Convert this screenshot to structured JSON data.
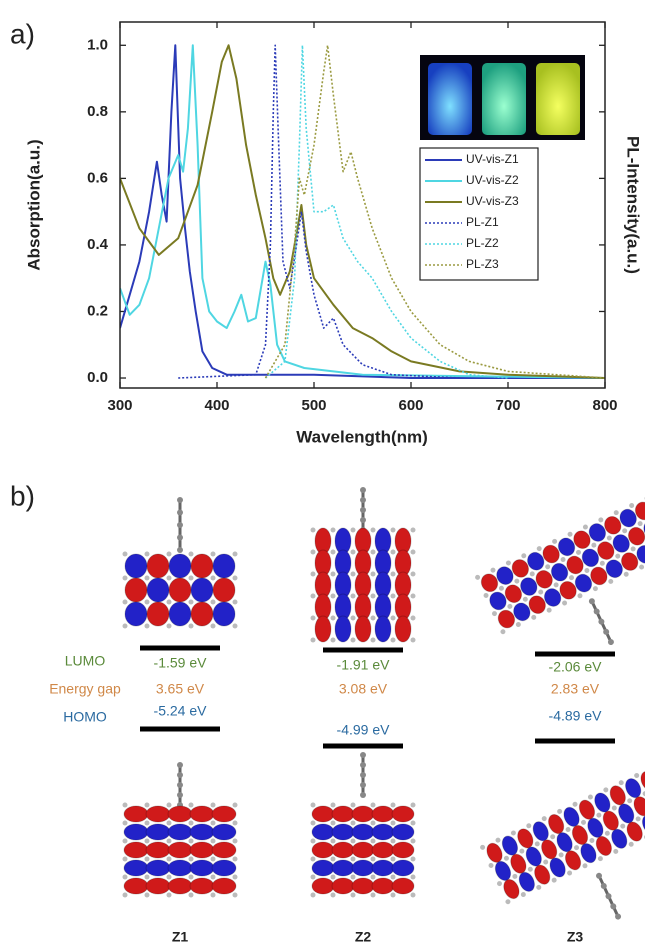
{
  "panel_a": {
    "label": "a)"
  },
  "chart_data": {
    "type": "line",
    "x_label": "Wavelength(nm)",
    "y_label": "Absorption(a.u.)",
    "y2_label": "PL-Intensity(a.u.)",
    "xlim": [
      300,
      800
    ],
    "xticks": [
      300,
      400,
      500,
      600,
      700,
      800
    ],
    "ylim": [
      -0.03,
      1.07
    ],
    "yticks": [
      {
        "value": 0,
        "label": "0.0"
      },
      0.2,
      0.4,
      0.6,
      0.8,
      {
        "value": 1,
        "label": "1.0"
      }
    ],
    "series": [
      {
        "name": "UV-vis-Z1",
        "color": "#2b3bb8",
        "style": "solid",
        "x": [
          300,
          310,
          320,
          330,
          338,
          343,
          348,
          353,
          357,
          362,
          367,
          372,
          378,
          385,
          395,
          410,
          450,
          500,
          600,
          800
        ],
        "values": [
          0.15,
          0.25,
          0.35,
          0.5,
          0.65,
          0.55,
          0.47,
          0.8,
          1.0,
          0.6,
          0.45,
          0.32,
          0.2,
          0.08,
          0.03,
          0.01,
          0.01,
          0.01,
          0.0,
          0.0
        ]
      },
      {
        "name": "UV-vis-Z2",
        "color": "#4fd6e2",
        "style": "solid",
        "x": [
          300,
          310,
          320,
          330,
          340,
          350,
          360,
          365,
          370,
          375,
          380,
          385,
          392,
          400,
          410,
          418,
          425,
          432,
          440,
          450,
          455,
          462,
          470,
          490,
          550,
          800
        ],
        "values": [
          0.27,
          0.19,
          0.22,
          0.3,
          0.45,
          0.6,
          0.67,
          0.62,
          0.75,
          1.0,
          0.7,
          0.3,
          0.2,
          0.17,
          0.15,
          0.2,
          0.25,
          0.17,
          0.18,
          0.35,
          0.28,
          0.1,
          0.05,
          0.03,
          0.01,
          0.0
        ]
      },
      {
        "name": "UV-vis-Z3",
        "color": "#7a7a22",
        "style": "solid",
        "x": [
          300,
          320,
          340,
          360,
          380,
          395,
          405,
          412,
          420,
          430,
          440,
          450,
          458,
          465,
          475,
          483,
          487,
          492,
          500,
          520,
          540,
          560,
          580,
          600,
          650,
          700,
          800
        ],
        "values": [
          0.6,
          0.45,
          0.37,
          0.42,
          0.58,
          0.8,
          0.95,
          1.0,
          0.9,
          0.7,
          0.55,
          0.42,
          0.3,
          0.25,
          0.32,
          0.45,
          0.52,
          0.4,
          0.3,
          0.22,
          0.15,
          0.12,
          0.08,
          0.05,
          0.02,
          0.01,
          0.0
        ]
      },
      {
        "name": "PL-Z1",
        "color": "#2b3bb8",
        "style": "dotted",
        "x": [
          360,
          440,
          450,
          455,
          458,
          460,
          463,
          468,
          475,
          482,
          487,
          492,
          500,
          510,
          520,
          530,
          550,
          580,
          650
        ],
        "values": [
          0.0,
          0.01,
          0.1,
          0.4,
          0.8,
          1.0,
          0.75,
          0.35,
          0.27,
          0.4,
          0.5,
          0.38,
          0.25,
          0.15,
          0.18,
          0.1,
          0.04,
          0.01,
          0.0
        ]
      },
      {
        "name": "PL-Z2",
        "color": "#4fd6e2",
        "style": "dotted",
        "x": [
          450,
          470,
          480,
          485,
          488,
          492,
          500,
          510,
          520,
          530,
          545,
          560,
          580,
          600,
          630,
          660,
          700
        ],
        "values": [
          0.0,
          0.05,
          0.3,
          0.7,
          1.0,
          0.75,
          0.5,
          0.5,
          0.52,
          0.42,
          0.35,
          0.3,
          0.2,
          0.12,
          0.05,
          0.01,
          0.0
        ]
      },
      {
        "name": "PL-Z3",
        "color": "#9a9a40",
        "style": "dotted",
        "x": [
          450,
          470,
          480,
          485,
          490,
          500,
          510,
          514,
          520,
          530,
          538,
          545,
          560,
          580,
          600,
          630,
          660,
          700,
          750,
          800
        ],
        "values": [
          0.0,
          0.1,
          0.4,
          0.6,
          0.55,
          0.7,
          0.92,
          1.0,
          0.85,
          0.62,
          0.68,
          0.6,
          0.45,
          0.3,
          0.2,
          0.1,
          0.05,
          0.02,
          0.01,
          0.0
        ]
      }
    ]
  },
  "panel_b": {
    "label": "b)",
    "row_labels": {
      "lumo": "LUMO",
      "gap": "Energy gap",
      "homo": "HOMO"
    },
    "molecules": [
      {
        "name": "Z1",
        "lumo": "-1.59 eV",
        "gap": "3.65 eV",
        "homo": "-5.24 eV"
      },
      {
        "name": "Z2",
        "lumo": "-1.91 eV",
        "gap": "3.08 eV",
        "homo": "-4.99 eV"
      },
      {
        "name": "Z3",
        "lumo": "-2.06 eV",
        "gap": "2.83 eV",
        "homo": "-4.89 eV"
      }
    ]
  }
}
